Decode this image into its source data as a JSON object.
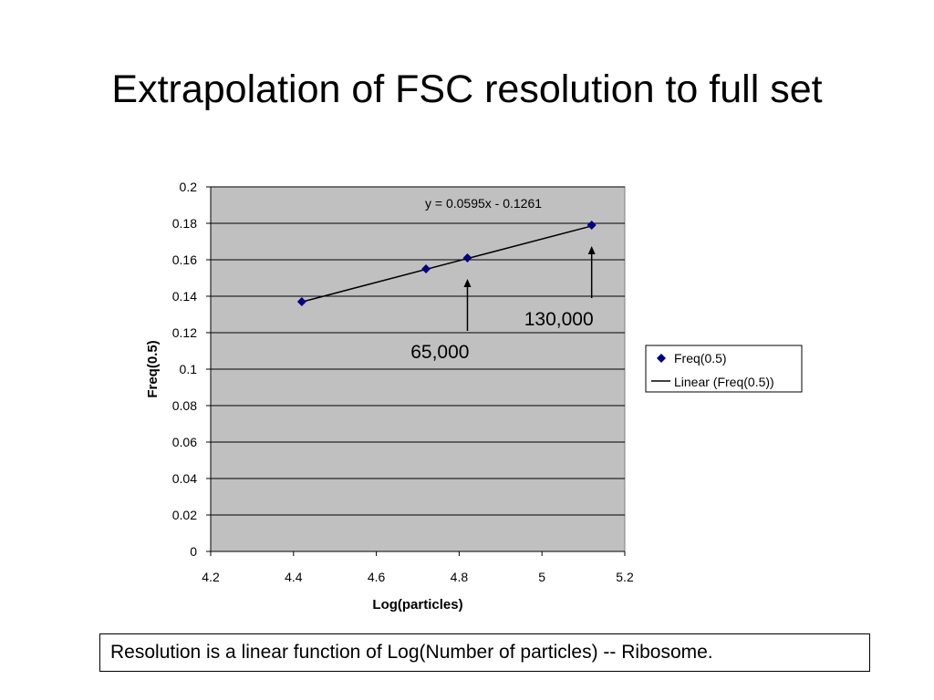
{
  "slide": {
    "title": "Extrapolation of FSC resolution to full set",
    "caption": "Resolution is a linear function of Log(Number of particles) -- Ribosome."
  },
  "chart_data": {
    "type": "scatter",
    "xlabel": "Log(particles)",
    "ylabel": "Freq(0.5)",
    "xlim": [
      4.2,
      5.2
    ],
    "ylim": [
      0,
      0.2
    ],
    "xticks": [
      "4.2",
      "4.4",
      "4.6",
      "4.8",
      "5",
      "5.2"
    ],
    "yticks": [
      "0",
      "0.02",
      "0.04",
      "0.06",
      "0.08",
      "0.1",
      "0.12",
      "0.14",
      "0.16",
      "0.18",
      "0.2"
    ],
    "grid": true,
    "plot_background": "#c0c0c0",
    "series": [
      {
        "name": "Freq(0.5)",
        "marker": "diamond",
        "color": "#000080",
        "points": [
          {
            "x": 4.42,
            "y": 0.137
          },
          {
            "x": 4.72,
            "y": 0.155
          },
          {
            "x": 4.82,
            "y": 0.161
          },
          {
            "x": 5.12,
            "y": 0.179
          }
        ]
      }
    ],
    "trendline": {
      "name": "Linear (Freq(0.5))",
      "color": "#000000",
      "slope": 0.0595,
      "intercept": -0.1261,
      "x_range": [
        4.42,
        5.12
      ],
      "equation": "y = 0.0595x - 0.1261"
    },
    "annotations": [
      {
        "text": "65,000",
        "arrow_to": {
          "x": 4.82,
          "y": 0.161
        }
      },
      {
        "text": "130,000",
        "arrow_to": {
          "x": 5.12,
          "y": 0.179
        }
      }
    ],
    "legend": {
      "placement": "right",
      "entries": [
        "Freq(0.5)",
        "Linear (Freq(0.5))"
      ]
    }
  }
}
